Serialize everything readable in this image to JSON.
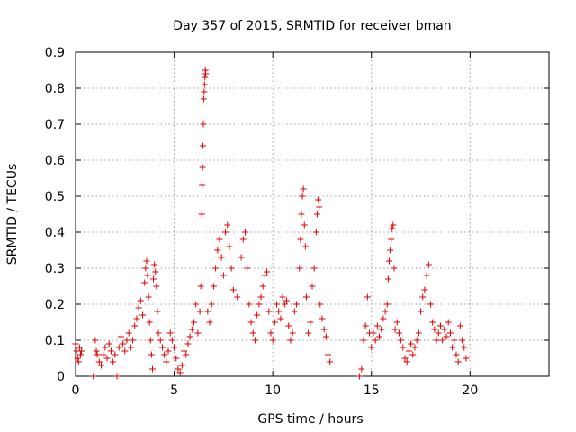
{
  "chart_data": {
    "type": "scatter",
    "title": "Day 357 of 2015, SRMTID for receiver bman",
    "xlabel": "GPS time / hours",
    "ylabel": "SRMTID / TECUs",
    "xlim": [
      0,
      24
    ],
    "ylim": [
      0,
      0.9
    ],
    "xticks": [
      0,
      5,
      10,
      15,
      20
    ],
    "yticks": [
      0,
      0.1,
      0.2,
      0.3,
      0.4,
      0.5,
      0.6,
      0.7,
      0.8,
      0.9
    ],
    "xtick_labels": [
      "0",
      "5",
      "10",
      "15",
      "20"
    ],
    "ytick_labels": [
      "0",
      "0.1",
      "0.2",
      "0.3",
      "0.4",
      "0.5",
      "0.6",
      "0.7",
      "0.8",
      "0.9"
    ],
    "grid": true,
    "marker": "+",
    "color": "#e00000",
    "series": [
      {
        "name": "SRMTID",
        "points": [
          [
            0.0,
            0.09
          ],
          [
            0.05,
            0.07
          ],
          [
            0.1,
            0.05
          ],
          [
            0.15,
            0.04
          ],
          [
            0.2,
            0.08
          ],
          [
            0.25,
            0.06
          ],
          [
            0.3,
            0.07
          ],
          [
            0.9,
            0.0
          ],
          [
            1.0,
            0.1
          ],
          [
            1.05,
            0.07
          ],
          [
            1.1,
            0.06
          ],
          [
            1.2,
            0.04
          ],
          [
            1.3,
            0.03
          ],
          [
            1.4,
            0.06
          ],
          [
            1.5,
            0.08
          ],
          [
            1.6,
            0.05
          ],
          [
            1.7,
            0.09
          ],
          [
            1.8,
            0.07
          ],
          [
            1.9,
            0.04
          ],
          [
            2.0,
            0.06
          ],
          [
            2.1,
            0.0
          ],
          [
            2.2,
            0.08
          ],
          [
            2.3,
            0.11
          ],
          [
            2.4,
            0.09
          ],
          [
            2.5,
            0.07
          ],
          [
            2.6,
            0.1
          ],
          [
            2.7,
            0.12
          ],
          [
            2.8,
            0.08
          ],
          [
            2.9,
            0.1
          ],
          [
            3.0,
            0.14
          ],
          [
            3.1,
            0.16
          ],
          [
            3.2,
            0.19
          ],
          [
            3.3,
            0.21
          ],
          [
            3.4,
            0.17
          ],
          [
            3.5,
            0.26
          ],
          [
            3.55,
            0.3
          ],
          [
            3.6,
            0.32
          ],
          [
            3.65,
            0.28
          ],
          [
            3.7,
            0.22
          ],
          [
            3.75,
            0.15
          ],
          [
            3.8,
            0.1
          ],
          [
            3.85,
            0.06
          ],
          [
            3.9,
            0.02
          ],
          [
            3.95,
            0.27
          ],
          [
            4.0,
            0.31
          ],
          [
            4.05,
            0.29
          ],
          [
            4.1,
            0.25
          ],
          [
            4.15,
            0.18
          ],
          [
            4.2,
            0.12
          ],
          [
            4.3,
            0.1
          ],
          [
            4.4,
            0.08
          ],
          [
            4.5,
            0.06
          ],
          [
            4.6,
            0.04
          ],
          [
            4.7,
            0.07
          ],
          [
            4.8,
            0.12
          ],
          [
            4.9,
            0.1
          ],
          [
            5.0,
            0.08
          ],
          [
            5.1,
            0.05
          ],
          [
            5.2,
            0.02
          ],
          [
            5.3,
            0.01
          ],
          [
            5.4,
            0.03
          ],
          [
            5.5,
            0.07
          ],
          [
            5.6,
            0.06
          ],
          [
            5.7,
            0.09
          ],
          [
            5.8,
            0.11
          ],
          [
            5.9,
            0.13
          ],
          [
            6.0,
            0.15
          ],
          [
            6.1,
            0.2
          ],
          [
            6.2,
            0.12
          ],
          [
            6.3,
            0.18
          ],
          [
            6.35,
            0.25
          ],
          [
            6.4,
            0.45
          ],
          [
            6.42,
            0.53
          ],
          [
            6.44,
            0.58
          ],
          [
            6.46,
            0.64
          ],
          [
            6.48,
            0.7
          ],
          [
            6.5,
            0.77
          ],
          [
            6.52,
            0.79
          ],
          [
            6.54,
            0.81
          ],
          [
            6.56,
            0.83
          ],
          [
            6.58,
            0.85
          ],
          [
            6.6,
            0.84
          ],
          [
            6.7,
            0.18
          ],
          [
            6.8,
            0.15
          ],
          [
            6.9,
            0.2
          ],
          [
            7.0,
            0.25
          ],
          [
            7.1,
            0.3
          ],
          [
            7.2,
            0.35
          ],
          [
            7.3,
            0.38
          ],
          [
            7.4,
            0.33
          ],
          [
            7.5,
            0.28
          ],
          [
            7.6,
            0.4
          ],
          [
            7.7,
            0.42
          ],
          [
            7.8,
            0.36
          ],
          [
            7.9,
            0.3
          ],
          [
            8.0,
            0.24
          ],
          [
            8.2,
            0.22
          ],
          [
            8.4,
            0.33
          ],
          [
            8.5,
            0.38
          ],
          [
            8.6,
            0.4
          ],
          [
            8.7,
            0.3
          ],
          [
            8.8,
            0.2
          ],
          [
            8.9,
            0.15
          ],
          [
            9.0,
            0.12
          ],
          [
            9.1,
            0.1
          ],
          [
            9.2,
            0.17
          ],
          [
            9.3,
            0.2
          ],
          [
            9.4,
            0.22
          ],
          [
            9.5,
            0.25
          ],
          [
            9.6,
            0.28
          ],
          [
            9.7,
            0.29
          ],
          [
            9.8,
            0.18
          ],
          [
            9.9,
            0.12
          ],
          [
            10.0,
            0.1
          ],
          [
            10.1,
            0.15
          ],
          [
            10.2,
            0.2
          ],
          [
            10.3,
            0.18
          ],
          [
            10.4,
            0.16
          ],
          [
            10.5,
            0.22
          ],
          [
            10.6,
            0.2
          ],
          [
            10.7,
            0.21
          ],
          [
            10.8,
            0.14
          ],
          [
            10.9,
            0.1
          ],
          [
            11.0,
            0.12
          ],
          [
            11.1,
            0.18
          ],
          [
            11.2,
            0.2
          ],
          [
            11.35,
            0.3
          ],
          [
            11.4,
            0.38
          ],
          [
            11.45,
            0.45
          ],
          [
            11.5,
            0.5
          ],
          [
            11.55,
            0.52
          ],
          [
            11.6,
            0.42
          ],
          [
            11.65,
            0.36
          ],
          [
            11.7,
            0.22
          ],
          [
            11.8,
            0.12
          ],
          [
            11.9,
            0.15
          ],
          [
            12.0,
            0.25
          ],
          [
            12.1,
            0.3
          ],
          [
            12.2,
            0.4
          ],
          [
            12.25,
            0.45
          ],
          [
            12.3,
            0.49
          ],
          [
            12.35,
            0.47
          ],
          [
            12.4,
            0.2
          ],
          [
            12.5,
            0.16
          ],
          [
            12.6,
            0.13
          ],
          [
            12.7,
            0.11
          ],
          [
            12.8,
            0.06
          ],
          [
            12.9,
            0.04
          ],
          [
            14.4,
            0.0
          ],
          [
            14.5,
            0.02
          ],
          [
            14.6,
            0.1
          ],
          [
            14.7,
            0.14
          ],
          [
            14.8,
            0.22
          ],
          [
            14.9,
            0.12
          ],
          [
            15.0,
            0.08
          ],
          [
            15.1,
            0.12
          ],
          [
            15.2,
            0.1
          ],
          [
            15.3,
            0.14
          ],
          [
            15.4,
            0.11
          ],
          [
            15.5,
            0.13
          ],
          [
            15.6,
            0.16
          ],
          [
            15.7,
            0.18
          ],
          [
            15.8,
            0.2
          ],
          [
            15.85,
            0.27
          ],
          [
            15.9,
            0.32
          ],
          [
            15.95,
            0.35
          ],
          [
            16.0,
            0.38
          ],
          [
            16.05,
            0.41
          ],
          [
            16.1,
            0.42
          ],
          [
            16.15,
            0.3
          ],
          [
            16.2,
            0.13
          ],
          [
            16.3,
            0.15
          ],
          [
            16.4,
            0.12
          ],
          [
            16.5,
            0.1
          ],
          [
            16.6,
            0.08
          ],
          [
            16.7,
            0.05
          ],
          [
            16.8,
            0.04
          ],
          [
            16.9,
            0.07
          ],
          [
            17.0,
            0.09
          ],
          [
            17.1,
            0.06
          ],
          [
            17.2,
            0.08
          ],
          [
            17.3,
            0.1
          ],
          [
            17.4,
            0.12
          ],
          [
            17.5,
            0.18
          ],
          [
            17.6,
            0.22
          ],
          [
            17.7,
            0.24
          ],
          [
            17.8,
            0.28
          ],
          [
            17.9,
            0.31
          ],
          [
            18.0,
            0.2
          ],
          [
            18.1,
            0.15
          ],
          [
            18.2,
            0.13
          ],
          [
            18.3,
            0.1
          ],
          [
            18.4,
            0.12
          ],
          [
            18.5,
            0.14
          ],
          [
            18.6,
            0.1
          ],
          [
            18.7,
            0.13
          ],
          [
            18.8,
            0.11
          ],
          [
            18.9,
            0.15
          ],
          [
            19.0,
            0.12
          ],
          [
            19.1,
            0.08
          ],
          [
            19.2,
            0.1
          ],
          [
            19.3,
            0.06
          ],
          [
            19.4,
            0.04
          ],
          [
            19.5,
            0.14
          ],
          [
            19.6,
            0.1
          ],
          [
            19.7,
            0.08
          ],
          [
            19.8,
            0.05
          ]
        ]
      }
    ]
  }
}
